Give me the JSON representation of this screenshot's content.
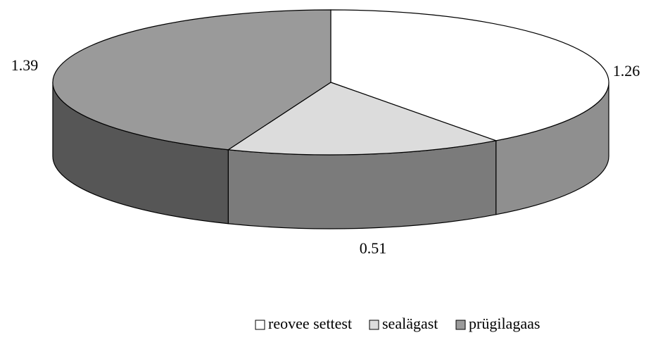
{
  "chart_data": {
    "type": "pie",
    "categories": [
      "reovee settest",
      "sealägast",
      "prügilagaas"
    ],
    "values": [
      1.26,
      0.51,
      1.39
    ],
    "colors": [
      "#ffffff",
      "#dcdcdc",
      "#9a9a9a"
    ]
  }
}
